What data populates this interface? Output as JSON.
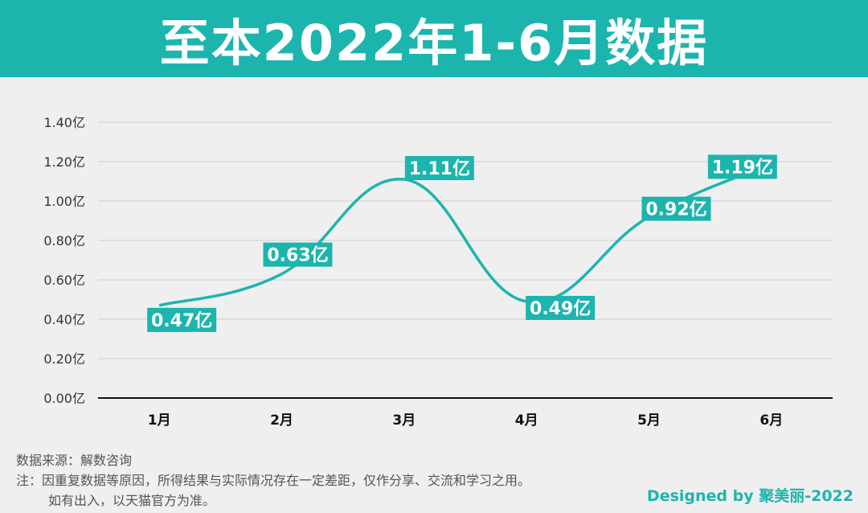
{
  "header": {
    "title": "至本2022年1-6月数据"
  },
  "chart_data": {
    "type": "line",
    "categories": [
      "1月",
      "2月",
      "3月",
      "4月",
      "5月",
      "6月"
    ],
    "values": [
      0.47,
      0.63,
      1.11,
      0.49,
      0.92,
      1.19
    ],
    "data_labels": [
      "0.47亿",
      "0.63亿",
      "1.11亿",
      "0.49亿",
      "0.92亿",
      "1.19亿"
    ],
    "y_ticks": [
      "0.00亿",
      "0.20亿",
      "0.40亿",
      "0.60亿",
      "0.80亿",
      "1.00亿",
      "1.20亿",
      "1.40亿"
    ],
    "ylim": [
      0,
      1.4
    ],
    "grid": true,
    "smooth": true,
    "line_color": "#1cb5ae",
    "label_bg_color": "#1cb5ae",
    "title": "",
    "xlabel": "",
    "ylabel": ""
  },
  "footer": {
    "source": "数据来源：解数咨询",
    "note_line1": "注：因重复数据等原因，所得结果与实际情况存在一定差距，仅作分享、交流和学习之用。",
    "note_line2": "如有出入，以天猫官方为准。"
  },
  "credit": "Designed by 聚美丽-2022"
}
